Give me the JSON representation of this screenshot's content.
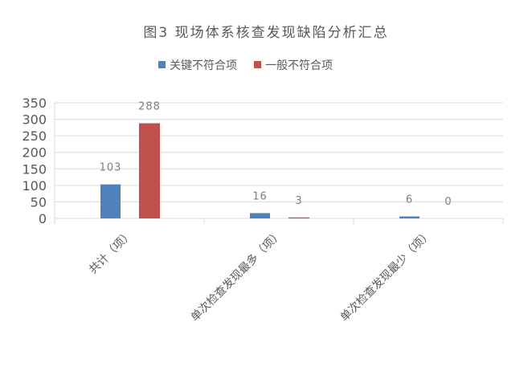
{
  "chart_data": {
    "type": "bar",
    "title": "图3 现场体系核查发现缺陷分析汇总",
    "categories": [
      "共计（项）",
      "单次检查发现最多（项）",
      "单次检查发现最少（项）"
    ],
    "series": [
      {
        "name": "关键不符合项",
        "values": [
          103,
          16,
          6
        ],
        "color": "#4f81bd"
      },
      {
        "name": "一般不符合项",
        "values": [
          288,
          3,
          0
        ],
        "color": "#c0504d"
      }
    ],
    "ylim": [
      0,
      350
    ],
    "yticks": [
      0,
      50,
      100,
      150,
      200,
      250,
      300,
      350
    ],
    "grid": true,
    "legend": "top",
    "data_labels": true
  }
}
